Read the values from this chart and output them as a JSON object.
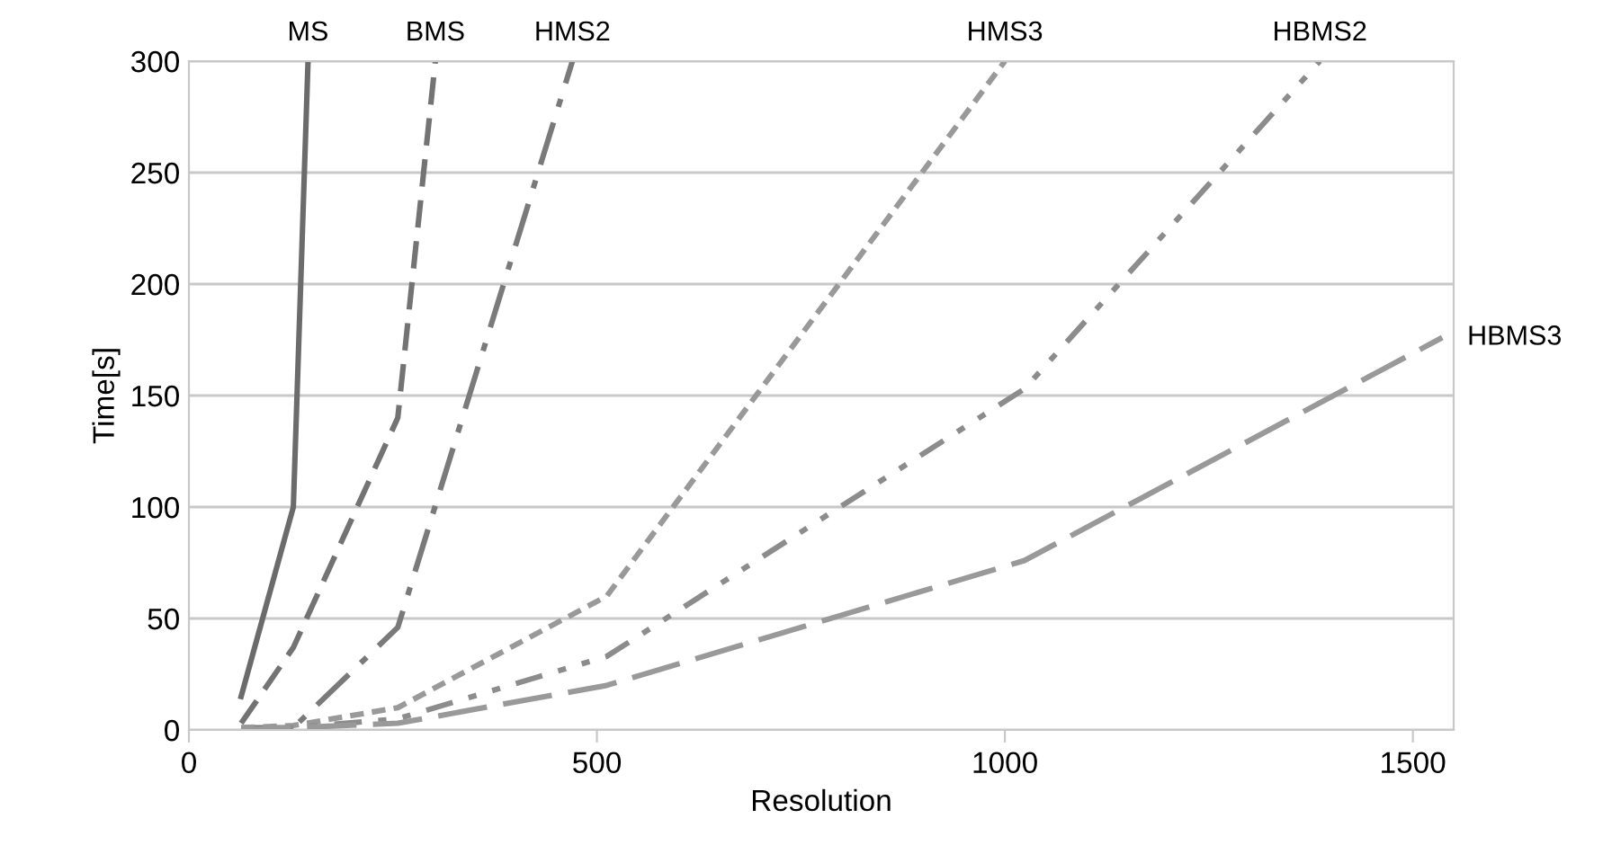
{
  "chart_data": {
    "type": "line",
    "xlabel": "Resolution",
    "ylabel": "Time[s]",
    "xlim": [
      0,
      1550
    ],
    "ylim": [
      0,
      300
    ],
    "xticks": [
      0,
      500,
      1000,
      1500
    ],
    "yticks": [
      0,
      50,
      100,
      150,
      200,
      250,
      300
    ],
    "grid": "y",
    "legend": false,
    "marker": "none",
    "series": [
      {
        "name": "MS",
        "color": "#6b6b6b",
        "line_style": "solid",
        "x": [
          64,
          128,
          146
        ],
        "values": [
          15,
          100,
          300
        ]
      },
      {
        "name": "BMS",
        "color": "#737373",
        "line_style": "dashed",
        "x": [
          64,
          128,
          256,
          302
        ],
        "values": [
          3,
          37,
          140,
          300
        ]
      },
      {
        "name": "HMS2",
        "color": "#7a7a7a",
        "line_style": "dashdot",
        "x": [
          64,
          128,
          256,
          470
        ],
        "values": [
          1,
          1,
          46,
          300
        ]
      },
      {
        "name": "HMS3",
        "color": "#999999",
        "line_style": "dotted",
        "x": [
          64,
          128,
          256,
          512,
          1000
        ],
        "values": [
          1,
          2,
          10,
          60,
          300
        ]
      },
      {
        "name": "HBMS2",
        "color": "#8c8c8c",
        "line_style": "dashdotdot",
        "x": [
          64,
          128,
          256,
          512,
          1024,
          1386
        ],
        "values": [
          0,
          1,
          5,
          33,
          153,
          300
        ]
      },
      {
        "name": "HBMS3",
        "color": "#999999",
        "line_style": "longdash",
        "x": [
          64,
          128,
          256,
          512,
          1024,
          1536
        ],
        "values": [
          0,
          1,
          3,
          20,
          76,
          176
        ]
      }
    ]
  }
}
